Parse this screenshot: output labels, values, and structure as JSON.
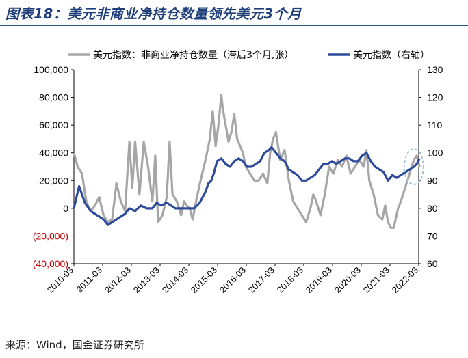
{
  "title": "图表18：美元非商业净持仓数量领先美元3个月",
  "source": "来源：Wind，国金证券研究所",
  "colors": {
    "gray_series": "#a6a6a6",
    "blue_series": "#2b4a9b",
    "negative_ticks": "#c00000",
    "highlight": "#9dc3e6"
  },
  "chart_data": {
    "type": "line",
    "legend": [
      "美元指数：非商业净持仓数量（滞后3个月,张）",
      "美元指数（右轴）"
    ],
    "legend_position": "top",
    "grid": false,
    "x_ticks": [
      "2010-03",
      "2011-03",
      "2012-03",
      "2013-03",
      "2014-03",
      "2015-03",
      "2016-03",
      "2017-03",
      "2018-03",
      "2019-03",
      "2020-03",
      "2021-03",
      "2022-03"
    ],
    "left_axis": {
      "ticks": [
        "100,000",
        "80,000",
        "60,000",
        "40,000",
        "20,000",
        "0",
        "(20,000)",
        "(40,000)"
      ],
      "range": [
        -40000,
        100000
      ]
    },
    "right_axis": {
      "ticks": [
        "130",
        "120",
        "110",
        "100",
        "90",
        "80",
        "70",
        "60"
      ],
      "range": [
        60,
        130
      ]
    },
    "series": [
      {
        "name": "美元指数：非商业净持仓数量（滞后3个月,张）",
        "axis": "left",
        "x": [
          2010.17,
          2010.3,
          2010.45,
          2010.6,
          2010.75,
          2010.9,
          2011.05,
          2011.2,
          2011.35,
          2011.5,
          2011.65,
          2011.8,
          2011.95,
          2012.1,
          2012.2,
          2012.3,
          2012.45,
          2012.6,
          2012.75,
          2012.9,
          2013.0,
          2013.1,
          2013.25,
          2013.4,
          2013.5,
          2013.6,
          2013.75,
          2013.9,
          2014.0,
          2014.1,
          2014.2,
          2014.3,
          2014.45,
          2014.6,
          2014.75,
          2014.9,
          2015.0,
          2015.1,
          2015.2,
          2015.3,
          2015.35,
          2015.45,
          2015.55,
          2015.65,
          2015.75,
          2015.85,
          2015.95,
          2016.05,
          2016.15,
          2016.3,
          2016.45,
          2016.6,
          2016.75,
          2016.9,
          2017.0,
          2017.1,
          2017.2,
          2017.35,
          2017.5,
          2017.65,
          2017.8,
          2017.95,
          2018.1,
          2018.25,
          2018.4,
          2018.5,
          2018.6,
          2018.75,
          2018.9,
          2019.05,
          2019.2,
          2019.35,
          2019.5,
          2019.65,
          2019.8,
          2019.95,
          2020.1,
          2020.25,
          2020.35,
          2020.45,
          2020.6,
          2020.75,
          2020.9,
          2021.0,
          2021.1,
          2021.2,
          2021.3,
          2021.45,
          2021.55,
          2021.7,
          2021.85,
          2022.0,
          2022.1,
          2022.2
        ],
        "values": [
          40000,
          30000,
          25000,
          5000,
          -2000,
          2000,
          8000,
          -5000,
          -10000,
          -8000,
          18000,
          5000,
          -2000,
          48000,
          15000,
          48000,
          10000,
          48000,
          30000,
          5000,
          38000,
          -10000,
          -5000,
          8000,
          48000,
          10000,
          5000,
          -5000,
          5000,
          2000,
          0,
          -8000,
          8000,
          22000,
          35000,
          50000,
          70000,
          45000,
          60000,
          82000,
          72000,
          60000,
          48000,
          55000,
          68000,
          50000,
          45000,
          40000,
          30000,
          25000,
          20000,
          20000,
          25000,
          18000,
          40000,
          50000,
          55000,
          35000,
          42000,
          20000,
          5000,
          0,
          -5000,
          -10000,
          0,
          10000,
          5000,
          -5000,
          10000,
          30000,
          25000,
          35000,
          30000,
          38000,
          25000,
          30000,
          35000,
          30000,
          42000,
          20000,
          10000,
          -5000,
          -8000,
          2000,
          -10000,
          -14000,
          -14000,
          0,
          5000,
          15000,
          25000,
          35000,
          38000,
          30000
        ]
      },
      {
        "name": "美元指数（右轴）",
        "axis": "right",
        "x": [
          2010.17,
          2010.35,
          2010.55,
          2010.75,
          2010.9,
          2011.05,
          2011.2,
          2011.35,
          2011.5,
          2011.65,
          2011.8,
          2011.95,
          2012.1,
          2012.3,
          2012.5,
          2012.7,
          2012.9,
          2013.05,
          2013.2,
          2013.4,
          2013.55,
          2013.7,
          2013.9,
          2014.05,
          2014.2,
          2014.35,
          2014.45,
          2014.55,
          2014.65,
          2014.75,
          2014.85,
          2014.95,
          2015.05,
          2015.15,
          2015.3,
          2015.45,
          2015.6,
          2015.75,
          2015.9,
          2016.05,
          2016.2,
          2016.35,
          2016.5,
          2016.65,
          2016.8,
          2016.95,
          2017.05,
          2017.2,
          2017.35,
          2017.5,
          2017.65,
          2017.8,
          2017.95,
          2018.1,
          2018.25,
          2018.4,
          2018.55,
          2018.7,
          2018.85,
          2019.0,
          2019.15,
          2019.3,
          2019.45,
          2019.6,
          2019.75,
          2019.9,
          2020.05,
          2020.2,
          2020.35,
          2020.5,
          2020.65,
          2020.8,
          2020.95,
          2021.1,
          2021.25,
          2021.4,
          2021.55,
          2021.7,
          2021.85,
          2022.0,
          2022.1,
          2022.2
        ],
        "values": [
          80,
          88,
          82,
          79,
          78,
          77,
          76,
          74,
          75,
          76,
          77,
          78,
          80,
          79,
          81,
          80,
          80,
          82,
          81,
          82,
          81,
          80,
          80,
          80,
          80,
          80,
          81,
          82,
          84,
          86,
          89,
          90,
          93,
          97,
          98,
          96,
          95,
          97,
          98,
          97,
          95,
          95,
          96,
          97,
          100,
          101,
          102,
          100,
          98,
          97,
          94,
          93,
          92,
          90,
          90,
          91,
          92,
          94,
          96,
          96,
          97,
          96,
          97,
          98,
          98,
          97,
          97,
          99,
          100,
          97,
          95,
          94,
          93,
          90,
          92,
          91,
          92,
          93,
          94,
          95,
          96,
          98
        ]
      }
    ],
    "annotation": "dashed ellipse highlighting 2022-03 end of series"
  }
}
